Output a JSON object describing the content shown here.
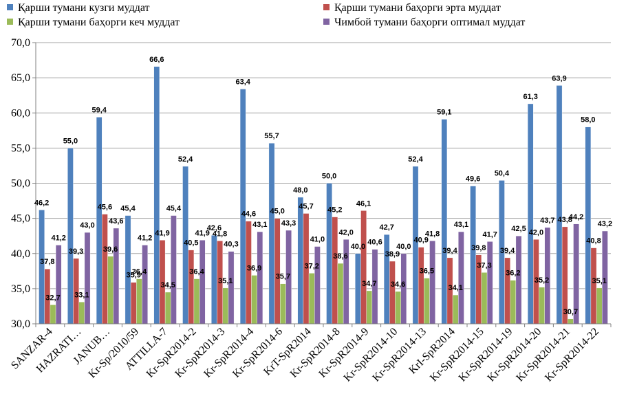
{
  "chart_data": {
    "type": "bar",
    "title": "",
    "xlabel": "",
    "ylabel": "",
    "ylim": [
      30,
      70
    ],
    "yticks": [
      "30,0",
      "35,0",
      "40,0",
      "45,0",
      "50,0",
      "55,0",
      "60,0",
      "65,0",
      "70,0"
    ],
    "ytick_values": [
      30,
      35,
      40,
      45,
      50,
      55,
      60,
      65,
      70
    ],
    "grid": "horizontal",
    "legend_position": "top",
    "categories": [
      "SANZAR-4",
      "HAZRATI…",
      "JANUB…",
      "Kr-Sp/2010/59",
      "ATTILLA-7",
      "Kr-SpR2014-2",
      "Kr-SpR2014-3",
      "Kr-SpR2014-4",
      "Kr-SpR2014-6",
      "KrT-SpR2014",
      "Kr-SpR2014-8",
      "Kr-SpR2014-9",
      "Kr-SpR2014-10",
      "Kr-SpR2014-13",
      "KrI-SpR2014",
      "Kr-SpR2014-15",
      "Kr-SpR2014-19",
      "Kr-SpR2014-20",
      "Kr-SpR2014-21",
      "Kr-SpR2014-22"
    ],
    "series": [
      {
        "name": "Қарши тумани кузги муддат",
        "color": "#4f81bd",
        "values": [
          46.2,
          55.0,
          59.4,
          45.4,
          66.6,
          52.4,
          42.6,
          63.4,
          55.7,
          48.0,
          50.0,
          40.0,
          42.7,
          52.4,
          59.1,
          49.6,
          50.4,
          61.3,
          63.9,
          58.0
        ],
        "labels": [
          "46,2",
          "55,0",
          "59,4",
          "45,4",
          "66,6",
          "52,4",
          "42,6",
          "63,4",
          "55,7",
          "48,0",
          "50,0",
          "40,0",
          "42,7",
          "52,4",
          "59,1",
          "49,6",
          "50,4",
          "61,3",
          "63,9",
          "58,0"
        ]
      },
      {
        "name": "Қарши тумани баҳорги эрта муддат",
        "color": "#c0504d",
        "values": [
          37.8,
          39.3,
          45.6,
          35.9,
          41.9,
          40.5,
          41.8,
          44.6,
          45.0,
          45.7,
          45.2,
          46.1,
          38.9,
          40.9,
          39.4,
          39.8,
          39.4,
          42.0,
          43.8,
          40.8
        ],
        "labels": [
          "37,8",
          "39,3",
          "45,6",
          "35,9",
          "41,9",
          "40,5",
          "41,8",
          "44,6",
          "45,0",
          "45,7",
          "45,2",
          "46,1",
          "38,9",
          "40,9",
          "39,4",
          "39,8",
          "39,4",
          "42,0",
          "43,8",
          "40,8"
        ]
      },
      {
        "name": "Қарши тумани баҳорги кеч муддат",
        "color": "#9bbb59",
        "values": [
          32.7,
          33.1,
          39.6,
          36.4,
          34.5,
          36.4,
          35.1,
          36.9,
          35.7,
          37.2,
          38.6,
          34.7,
          34.6,
          36.5,
          34.1,
          37.3,
          36.2,
          35.2,
          30.7,
          35.1
        ],
        "labels": [
          "32,7",
          "33,1",
          "39,6",
          "36,4",
          "34,5",
          "36,4",
          "35,1",
          "36,9",
          "35,7",
          "37,2",
          "38,6",
          "34,7",
          "34,6",
          "36,5",
          "34,1",
          "37,3",
          "36,2",
          "35,2",
          "30,7",
          "35,1"
        ]
      },
      {
        "name": "Чимбой тумани баҳорги оптимал муддат",
        "color": "#8064a2",
        "values": [
          41.2,
          43.0,
          43.6,
          41.2,
          45.4,
          41.9,
          40.3,
          43.1,
          43.3,
          41.0,
          42.0,
          40.6,
          40.0,
          41.8,
          43.1,
          41.7,
          42.5,
          43.7,
          44.2,
          43.2
        ],
        "labels": [
          "41,2",
          "43,0",
          "43,6",
          "41,2",
          "45,4",
          "41,9",
          "40,3",
          "43,1",
          "43,3",
          "41,0",
          "42,0",
          "40,6",
          "40,0",
          "41,8",
          "43,1",
          "41,7",
          "42,5",
          "43,7",
          "44,2",
          "43,2"
        ]
      }
    ]
  }
}
